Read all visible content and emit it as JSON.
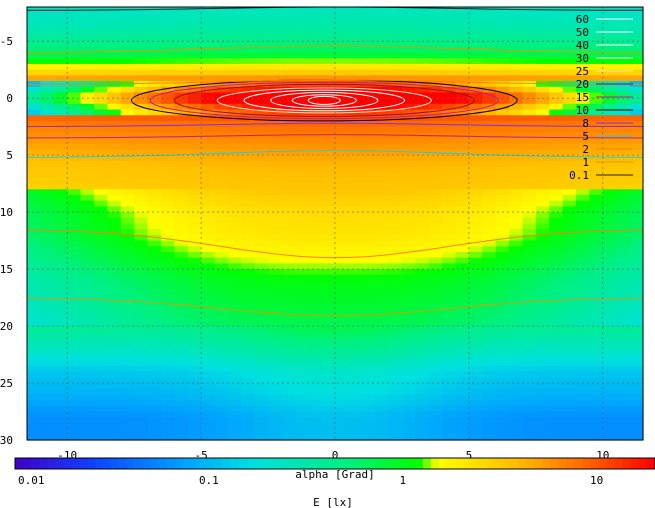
{
  "chart_data": {
    "type": "heatmap",
    "title": "",
    "xlabel": "alpha [Grad]",
    "ylabel": "",
    "colorbar_label": "E [lx]",
    "colorbar_scale": "log",
    "colorbar_range": [
      0.01,
      20
    ],
    "colorbar_ticks": [
      "0.01",
      "0.1",
      "1",
      "10"
    ],
    "xlim": [
      -11.5,
      11.5
    ],
    "ylim": [
      -8,
      30
    ],
    "y_inverted": true,
    "x_ticks": [
      "-10",
      "-5",
      "0",
      "5",
      "10"
    ],
    "y_ticks": [
      "-5",
      "0",
      "5",
      "10",
      "15",
      "20",
      "25",
      "30"
    ],
    "grid": true,
    "legend_position": "top-right",
    "colors": {
      "c60": "#ffffff",
      "c50": "#ffffff",
      "c40": "#ffffff",
      "c30": "#ffffff",
      "c25": "#ffe0c0",
      "c20": "#9a1010",
      "c15": "#c0208a",
      "c10": "#000000",
      "c8": "#8a2be2",
      "c5": "#20d0d0",
      "c2": "#ff8000",
      "c1": "#d0a000",
      "c01": "#202020"
    },
    "contour_levels": [
      {
        "label": "60"
      },
      {
        "label": "50"
      },
      {
        "label": "40"
      },
      {
        "label": "30"
      },
      {
        "label": "25"
      },
      {
        "label": "20"
      },
      {
        "label": "15"
      },
      {
        "label": "10"
      },
      {
        "label": "8"
      },
      {
        "label": "5"
      },
      {
        "label": "2"
      },
      {
        "label": "1"
      },
      {
        "label": "0.1"
      }
    ],
    "illuminance_profile": {
      "description_units": "E [lx] vs y at x=0",
      "y": [
        -8,
        -6,
        -4,
        -2,
        -1,
        0,
        1,
        2,
        4,
        6,
        8,
        10,
        12,
        14,
        16,
        18,
        20,
        22,
        24,
        26,
        28,
        30
      ],
      "E": [
        0.25,
        0.35,
        0.7,
        4,
        16,
        60,
        16,
        9,
        6,
        4,
        3.5,
        2.5,
        2.2,
        1.6,
        1.1,
        0.9,
        0.7,
        0.4,
        0.2,
        0.15,
        0.1,
        0.1
      ]
    }
  }
}
